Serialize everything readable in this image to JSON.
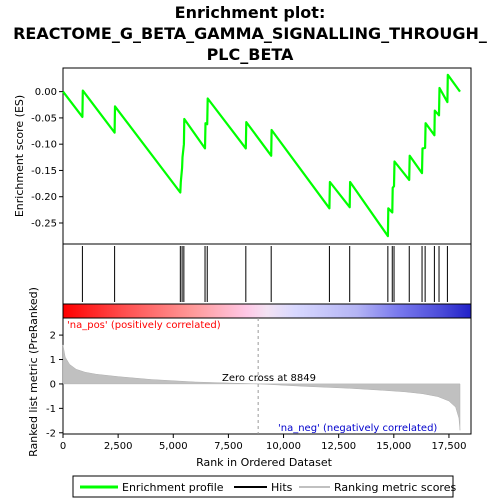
{
  "chart_data": {
    "type": "line",
    "title_lines": [
      "Enrichment plot:",
      "REACTOME_G_BETA_GAMMA_SIGNALLING_THROUGH_",
      "PLC_BETA"
    ],
    "es_panel": {
      "ylabel": "Enrichment score (ES)",
      "ylim": [
        -0.29,
        0.045
      ],
      "yticks": [
        0.0,
        -0.05,
        -0.1,
        -0.15,
        -0.2,
        -0.25
      ],
      "ytick_labels": [
        "0.00",
        "-0.05",
        "-0.10",
        "-0.15",
        "-0.20",
        "-0.25"
      ],
      "series": [
        {
          "name": "Enrichment profile",
          "color": "#00ff00",
          "x": [
            0,
            880,
            900,
            2340,
            2360,
            5320,
            5340,
            5400,
            5420,
            5480,
            5500,
            6440,
            6460,
            6540,
            6560,
            8290,
            8310,
            9440,
            9460,
            12080,
            12100,
            13000,
            13020,
            14730,
            14750,
            14930,
            14950,
            15010,
            15030,
            15700,
            15720,
            16280,
            16300,
            16420,
            16440,
            16840,
            16860,
            17050,
            17070,
            17430,
            17450,
            18000
          ],
          "y": [
            0.0,
            -0.048,
            0.002,
            -0.078,
            -0.028,
            -0.192,
            -0.172,
            -0.145,
            -0.125,
            -0.1,
            -0.052,
            -0.108,
            -0.06,
            -0.062,
            -0.013,
            -0.108,
            -0.058,
            -0.122,
            -0.073,
            -0.222,
            -0.172,
            -0.22,
            -0.172,
            -0.275,
            -0.222,
            -0.23,
            -0.183,
            -0.18,
            -0.133,
            -0.168,
            -0.122,
            -0.155,
            -0.108,
            -0.107,
            -0.06,
            -0.083,
            -0.036,
            -0.045,
            0.007,
            -0.02,
            0.032,
            0.0
          ]
        }
      ],
      "hits_x": [
        880,
        2340,
        5320,
        5400,
        5480,
        6440,
        6540,
        8290,
        9440,
        12080,
        13000,
        14730,
        14930,
        15010,
        15700,
        16280,
        16420,
        16840,
        17050,
        17430
      ]
    },
    "rank_panel": {
      "ylabel": "Ranked list metric (PreRanked)",
      "xlabel": "Rank in Ordered Dataset",
      "xlim": [
        0,
        18500
      ],
      "ylim": [
        -2.05,
        2.7
      ],
      "xticks": [
        0,
        2500,
        5000,
        7500,
        10000,
        12500,
        15000,
        17500
      ],
      "xtick_labels": [
        "0",
        "2,500",
        "5,000",
        "7,500",
        "10,000",
        "12,500",
        "15,000",
        "17,500"
      ],
      "yticks": [
        2,
        1,
        0,
        -1,
        -2
      ],
      "ytick_labels": [
        "2",
        "1",
        "0",
        "-1",
        "-2"
      ],
      "metric_profile": {
        "x": [
          0,
          100,
          300,
          600,
          1000,
          1500,
          2500,
          4000,
          6000,
          8849,
          11000,
          13000,
          14500,
          15500,
          16300,
          17000,
          17500,
          17800,
          17950,
          18000
        ],
        "y": [
          1.6,
          1.1,
          0.8,
          0.6,
          0.48,
          0.4,
          0.3,
          0.18,
          0.08,
          0.0,
          -0.1,
          -0.18,
          -0.26,
          -0.32,
          -0.4,
          -0.52,
          -0.7,
          -0.95,
          -1.4,
          -1.9
        ]
      },
      "zero_cross_x": 8849,
      "zero_cross_label": "Zero cross at 8849",
      "pos_label": "'na_pos' (positively correlated)",
      "neg_label": "'na_neg' (negatively correlated)",
      "pos_color": "#ff0000",
      "neg_color": "#0000cc"
    },
    "legend": [
      {
        "label": "Enrichment profile",
        "color": "#00ff00"
      },
      {
        "label": "Hits",
        "color": "#000000"
      },
      {
        "label": "Ranking metric scores",
        "color": "#c0c0c0"
      }
    ]
  }
}
